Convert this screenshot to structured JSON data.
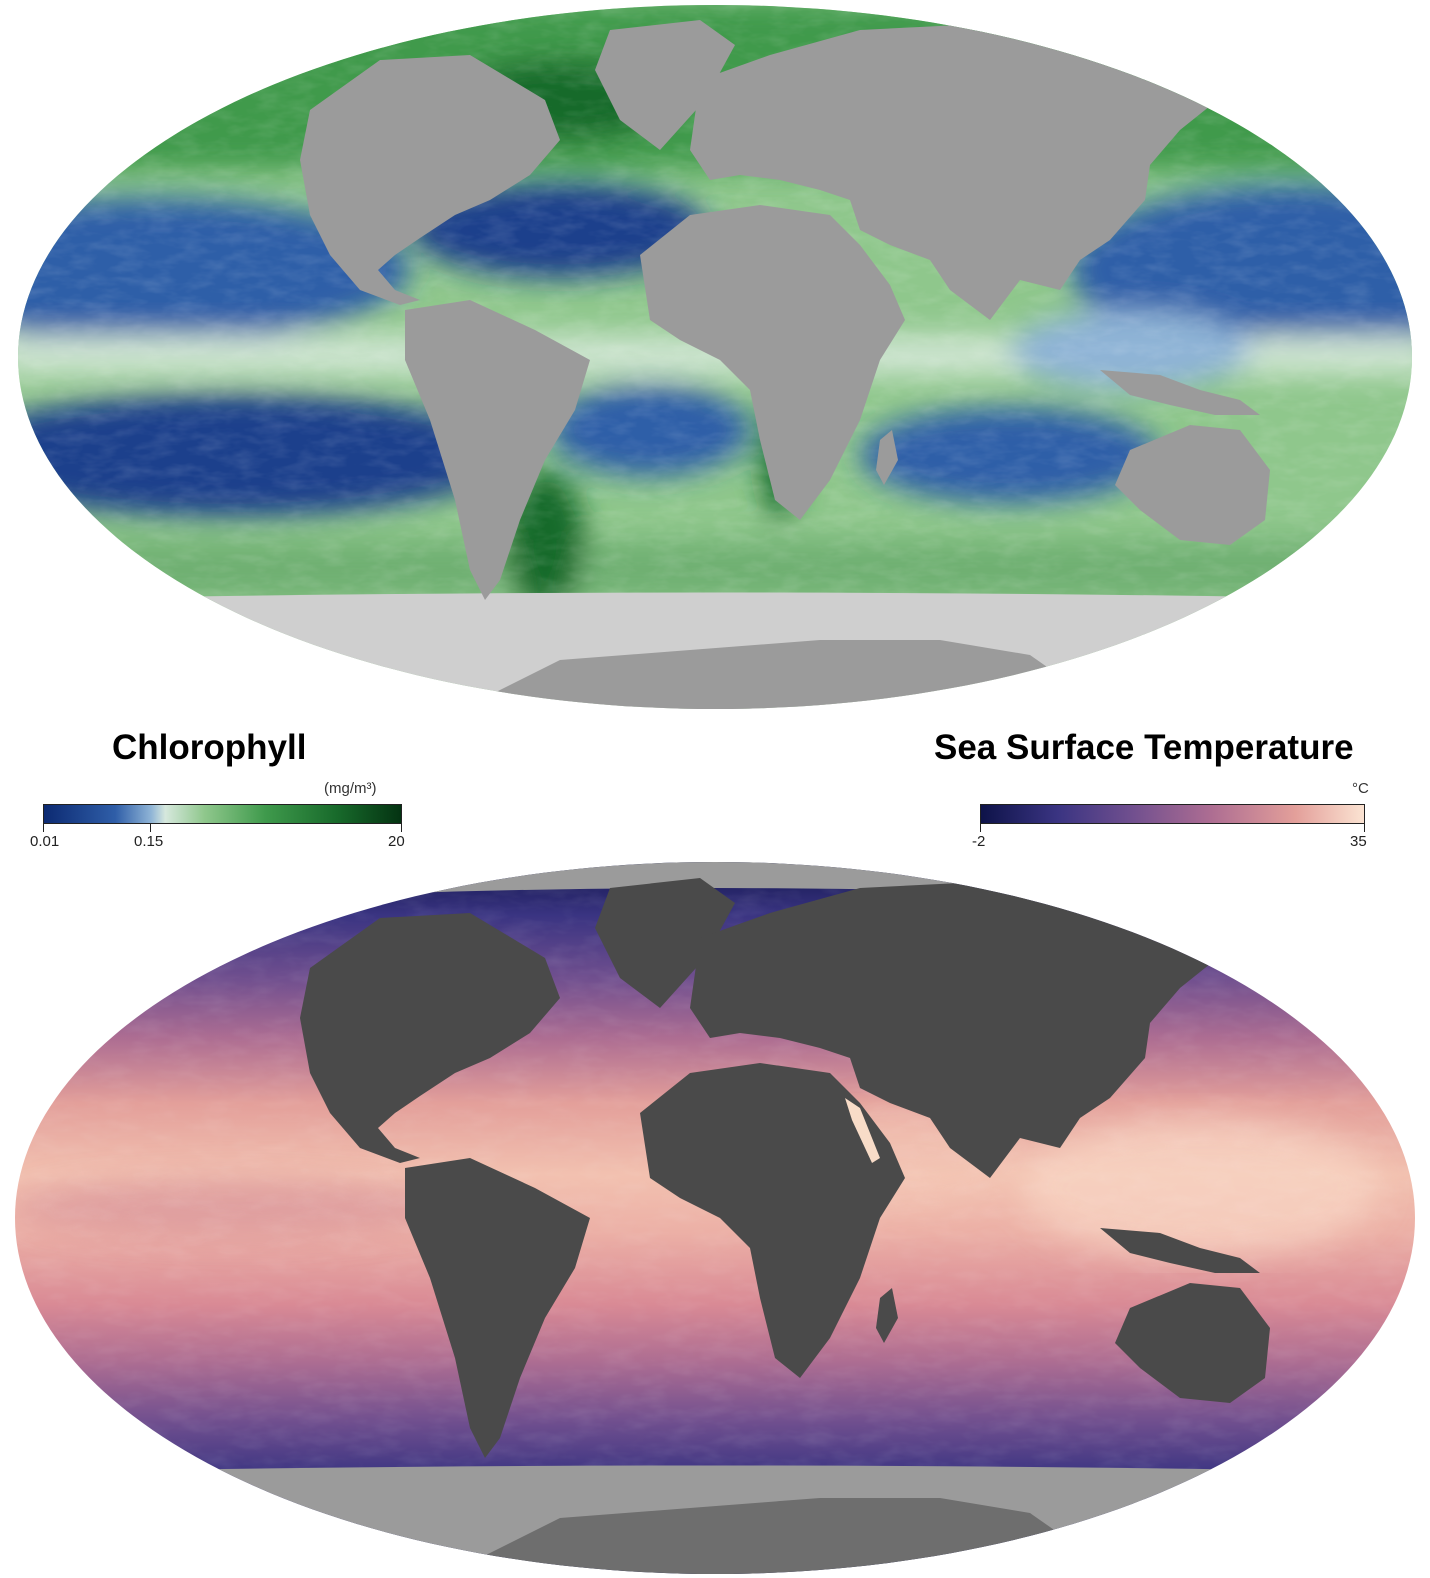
{
  "chlorophyll": {
    "title": "Chlorophyll",
    "unit": "(mg/m³)",
    "scale": {
      "min": "0.01",
      "mid": "0.15",
      "max": "20"
    },
    "palette": [
      "#0c2a72",
      "#2f5ea8",
      "#8fb4d6",
      "#d6e8dd",
      "#8fc78c",
      "#3f9a4c",
      "#186a2b",
      "#043312"
    ],
    "land_color": "#9b9b9b",
    "no_data_color": "#cfcfcf"
  },
  "sst": {
    "title": "Sea Surface Temperature",
    "unit": "°C",
    "scale": {
      "min": "-2",
      "max": "35"
    },
    "palette": [
      "#0e1349",
      "#3a3482",
      "#72508f",
      "#ad6d92",
      "#e39f9a",
      "#fbe3d2"
    ],
    "land_color": "#4a4a4a",
    "no_data_color": "#9b9b9b"
  }
}
